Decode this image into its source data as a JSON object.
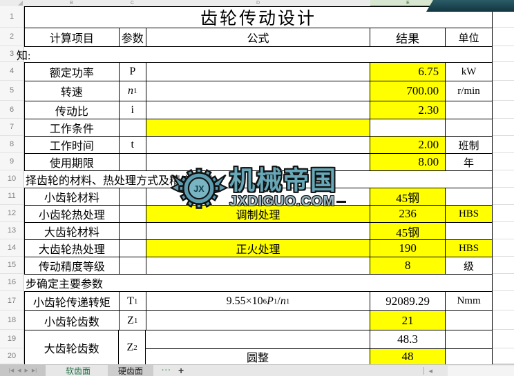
{
  "title": "齿轮传动设计",
  "column_letters": [
    "B",
    "C",
    "D",
    "E",
    "F",
    "G"
  ],
  "selected_column": "E",
  "row_numbers": [
    1,
    2,
    3,
    4,
    5,
    6,
    7,
    8,
    9,
    10,
    11,
    12,
    13,
    14,
    15,
    16,
    17,
    18,
    19,
    20
  ],
  "table_header": {
    "item": "计算项目",
    "param": "参数",
    "formula": "公式",
    "result": "结果",
    "unit": "单位"
  },
  "rows": [
    {
      "n": 3,
      "type": "section",
      "text": "知:",
      "clip": 13
    },
    {
      "n": 4,
      "type": "data",
      "item": "额定功率",
      "param": [
        {
          "t": "P"
        }
      ],
      "formula": [],
      "result": "6.75",
      "unit": "kW",
      "ralign": "right",
      "y": {
        "result": true
      }
    },
    {
      "n": 5,
      "type": "data",
      "item": "转速",
      "param": [
        {
          "i": "n"
        },
        {
          "sub": "1"
        }
      ],
      "formula": [],
      "result": "700.00",
      "unit": "r/min",
      "ralign": "right",
      "y": {
        "result": true
      }
    },
    {
      "n": 6,
      "type": "data",
      "item": "传动比",
      "param": [
        {
          "t": "i"
        }
      ],
      "formula": [],
      "result": "2.30",
      "unit": "",
      "ralign": "right",
      "y": {
        "result": true
      }
    },
    {
      "n": 7,
      "type": "data",
      "item": "工作条件",
      "param": [],
      "formula": [],
      "result": "",
      "unit": "",
      "ralign": "center",
      "y": {
        "formula": true
      }
    },
    {
      "n": 8,
      "type": "data",
      "item": "工作时间",
      "param": [
        {
          "t": "t"
        }
      ],
      "formula": [],
      "result": "2.00",
      "unit": "班制",
      "ralign": "right",
      "y": {
        "result": true
      }
    },
    {
      "n": 9,
      "type": "data",
      "item": "使用期限",
      "param": [],
      "formula": [],
      "result": "8.00",
      "unit": "年",
      "ralign": "right",
      "y": {
        "result": true
      }
    },
    {
      "n": 10,
      "type": "section",
      "text": "择齿轮的材料、热处理方式及精度等级"
    },
    {
      "n": 11,
      "type": "data",
      "item": "小齿轮材料",
      "param": [],
      "formula": [],
      "result": "45钢",
      "unit": "",
      "ralign": "center",
      "y": {
        "result": true
      }
    },
    {
      "n": 12,
      "type": "data",
      "item": "小齿轮热处理",
      "param": [],
      "formula": [
        {
          "t": "调制处理"
        }
      ],
      "result": "236",
      "unit": "HBS",
      "ralign": "center",
      "y": {
        "formula": true,
        "result": true,
        "unit": true
      }
    },
    {
      "n": 13,
      "type": "data",
      "item": "大齿轮材料",
      "param": [],
      "formula": [],
      "result": "45钢",
      "unit": "",
      "ralign": "center",
      "y": {
        "result": true
      }
    },
    {
      "n": 14,
      "type": "data",
      "item": "大齿轮热处理",
      "param": [],
      "formula": [
        {
          "t": "正火处理"
        }
      ],
      "result": "190",
      "unit": "HBS",
      "ralign": "center",
      "y": {
        "formula": true,
        "result": true,
        "unit": true
      }
    },
    {
      "n": 15,
      "type": "data",
      "item": "传动精度等级",
      "param": [],
      "formula": [],
      "result": "8",
      "unit": "级",
      "ralign": "center",
      "y": {
        "result": true
      }
    },
    {
      "n": 16,
      "type": "section",
      "text": "步确定主要参数"
    },
    {
      "n": 17,
      "type": "data",
      "item": "小齿轮传递转矩",
      "param": [
        {
          "t": "T"
        },
        {
          "sub": "1"
        }
      ],
      "formula": [
        {
          "t": "9.55×10"
        },
        {
          "sup": "6"
        },
        {
          "i": "P"
        },
        {
          "sub": "1"
        },
        {
          "t": "/"
        },
        {
          "i": "n"
        },
        {
          "sub": "1"
        }
      ],
      "result": "92089.29",
      "unit": "Nmm",
      "ralign": "center",
      "y": {}
    },
    {
      "n": 18,
      "type": "data",
      "item": "小齿轮齿数",
      "param": [
        {
          "t": "Z"
        },
        {
          "sub": "1"
        }
      ],
      "formula": [],
      "result": "21",
      "unit": "",
      "ralign": "center",
      "y": {
        "result": true
      }
    },
    {
      "n": "19-20",
      "type": "merged",
      "item": "大齿轮齿数",
      "param": [
        {
          "t": "Z"
        },
        {
          "sub": "2"
        }
      ],
      "top": {
        "result": "48.3",
        "yellow": false
      },
      "bottom": {
        "formula": [
          {
            "t": "圆整"
          }
        ],
        "result": "48",
        "yellow": true
      }
    }
  ],
  "watermark": {
    "brand": "机械帝国",
    "site": "JXDIGUO.COM",
    "logo": "winged-gear",
    "monogram": "JX",
    "color": "#67a7b7"
  },
  "tabbar": {
    "nav_icons": [
      "|◀",
      "◀",
      "▶",
      "▶|"
    ],
    "tabs": [
      {
        "label": "软齿面",
        "active": true
      },
      {
        "label": "硬齿面",
        "active": false
      }
    ],
    "more_label": "···",
    "add_label": "+",
    "scroll_left_icon": "◀"
  },
  "colors": {
    "cell_highlight": "#ffff00",
    "selected_col_bg": "#d8e8d0",
    "selected_col_border": "#5e9c4e",
    "active_tab_text": "#1e7044",
    "banner": "#1b4550"
  }
}
